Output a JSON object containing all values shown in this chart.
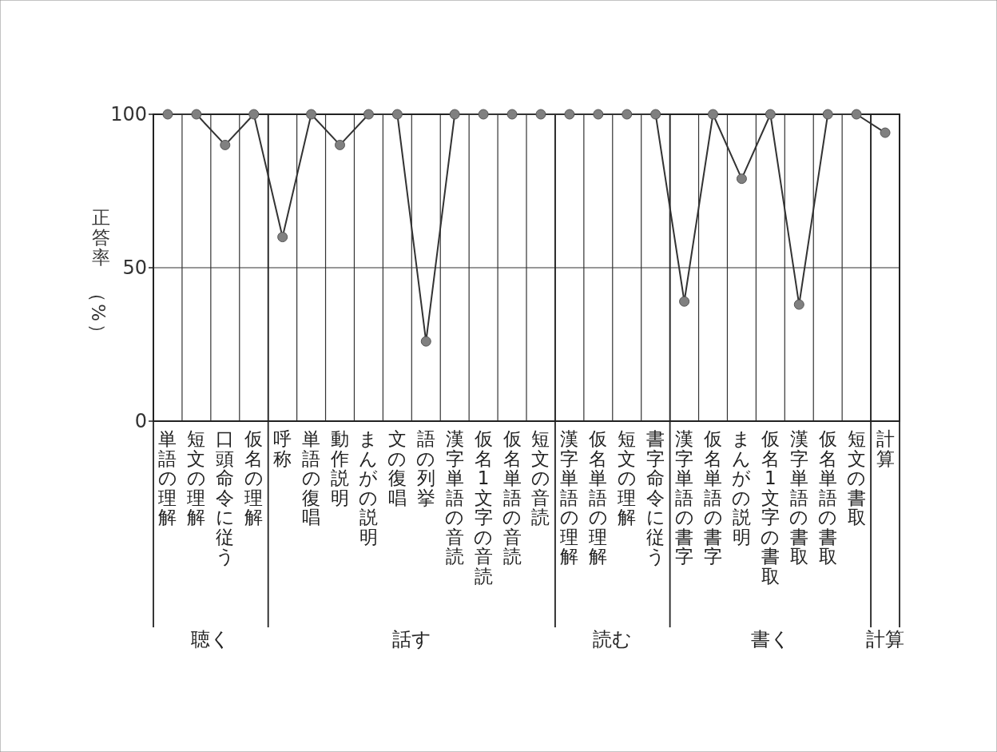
{
  "chart_data": {
    "type": "line",
    "ylabel": "正答率（%）",
    "categories": [
      "単語の理解",
      "短文の理解",
      "口頭命令に従う",
      "仮名の理解",
      "呼称",
      "単語の復唱",
      "動作説明",
      "まんがの説明",
      "文の復唱",
      "語の列挙",
      "漢字単語の音読",
      "仮名1文字の音読",
      "仮名単語の音読",
      "短文の音読",
      "漢字単語の理解",
      "仮名単語の理解",
      "短文の理解",
      "書字命令に従う",
      "漢字単語の書字",
      "仮名単語の書字",
      "まんがの説明",
      "仮名1文字の書取",
      "漢字単語の書取",
      "仮名単語の書取",
      "短文の書取",
      "計算"
    ],
    "series": [
      {
        "color": "#808080",
        "values": [
          100,
          100,
          90,
          100,
          60,
          100,
          90,
          100,
          100,
          26,
          100,
          100,
          100,
          100,
          100,
          100,
          100,
          100,
          39,
          100,
          79,
          100,
          38,
          100,
          100,
          94
        ]
      }
    ],
    "ylim": [
      0,
      100
    ],
    "yticks": [
      0,
      50,
      100
    ],
    "grid": true,
    "marker": "circle",
    "line_style": "solid",
    "annotations": [
      "聴く",
      "話す",
      "読む",
      "書く",
      "計算"
    ]
  }
}
